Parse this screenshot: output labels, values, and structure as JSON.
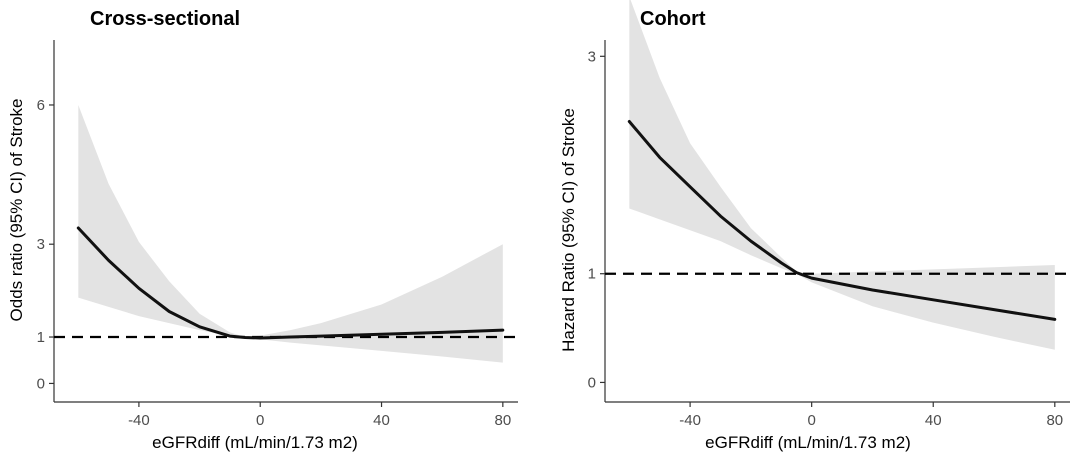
{
  "chart_data": [
    {
      "type": "line",
      "title": "Cross-sectional",
      "xlabel": "eGFRdiff (mL/min/1.73 m2)",
      "ylabel": "Odds ratio (95% CI) of Stroke",
      "xlim": [
        -68,
        85
      ],
      "ylim": [
        -0.4,
        7.4
      ],
      "x_ticks": [
        "-40",
        "0",
        "40",
        "80"
      ],
      "y_ticks": [
        "0",
        "1",
        "3",
        "6"
      ],
      "reference_line": 1,
      "series": [
        {
          "x": [
            -60,
            -50,
            -40,
            -30,
            -20,
            -10,
            -5,
            0,
            10,
            20,
            40,
            60,
            80
          ],
          "values": [
            3.35,
            2.65,
            2.05,
            1.55,
            1.22,
            1.02,
            0.99,
            0.98,
            1.0,
            1.02,
            1.06,
            1.1,
            1.15
          ]
        }
      ],
      "ci_lower": [
        1.85,
        1.65,
        1.45,
        1.3,
        1.15,
        1.02,
        0.99,
        0.95,
        0.88,
        0.82,
        0.7,
        0.58,
        0.45
      ],
      "ci_upper": [
        6.0,
        4.3,
        3.05,
        2.2,
        1.5,
        1.1,
        1.0,
        1.03,
        1.15,
        1.3,
        1.7,
        2.3,
        3.0
      ],
      "grid": false
    },
    {
      "type": "line",
      "title": "Cohort",
      "xlabel": "eGFRdiff (mL/min/1.73 m2)",
      "ylabel": "Hazard Ratio (95% CI) of Stroke",
      "xlim": [
        -68,
        85
      ],
      "ylim": [
        -0.18,
        3.15
      ],
      "x_ticks": [
        "-40",
        "0",
        "40",
        "80"
      ],
      "y_ticks": [
        "0",
        "1",
        "3"
      ],
      "reference_line": 1,
      "series": [
        {
          "x": [
            -60,
            -50,
            -40,
            -30,
            -20,
            -10,
            -5,
            0,
            20,
            40,
            60,
            80
          ],
          "values": [
            2.4,
            2.07,
            1.8,
            1.53,
            1.3,
            1.1,
            1.01,
            0.96,
            0.85,
            0.76,
            0.67,
            0.58
          ]
        }
      ],
      "ci_lower": [
        1.6,
        1.5,
        1.4,
        1.3,
        1.17,
        1.05,
        1.0,
        0.92,
        0.7,
        0.55,
        0.42,
        0.3
      ],
      "ci_upper": [
        3.55,
        2.8,
        2.2,
        1.8,
        1.42,
        1.15,
        1.02,
        1.0,
        1.02,
        1.04,
        1.06,
        1.08
      ],
      "grid": false
    }
  ]
}
